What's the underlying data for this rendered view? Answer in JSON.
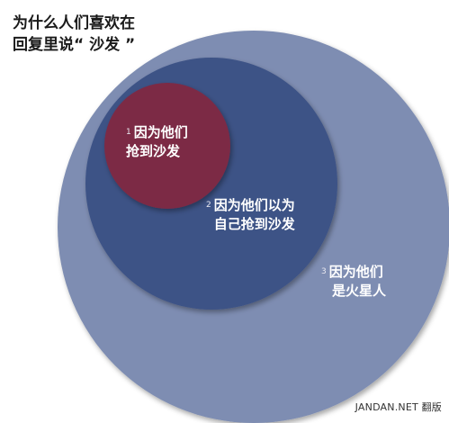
{
  "title": {
    "line1": "为什么人们喜欢在",
    "line2": "回复里说“ 沙发 ”"
  },
  "circles": [
    {
      "number": "1",
      "line1": "因为他们",
      "line2": "抢到沙发",
      "color": "#7c2a45"
    },
    {
      "number": "2",
      "line1": "因为他们以为",
      "line2": "自己抢到沙发",
      "color": "#3d5286"
    },
    {
      "number": "3",
      "line1": "因为他们",
      "line2": "是火星人",
      "color": "#7e8db2"
    }
  ],
  "credit": "JANDAN.NET 翻版"
}
